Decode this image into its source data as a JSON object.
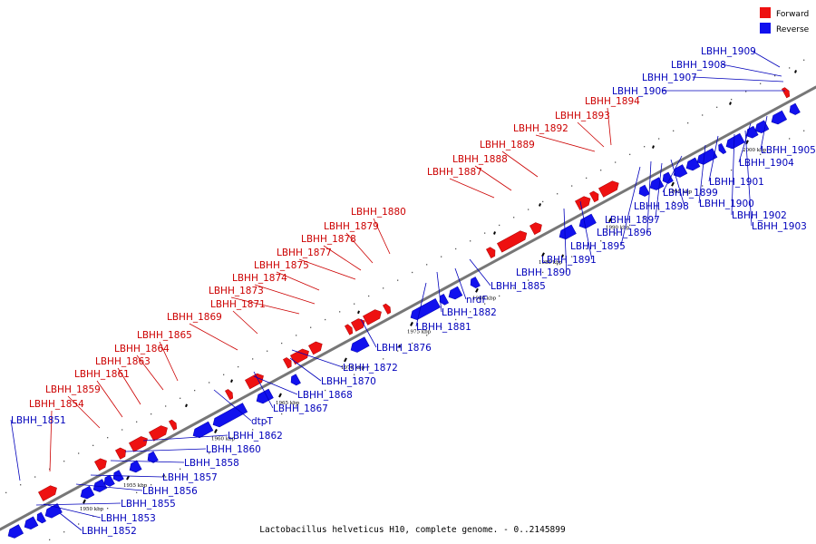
{
  "caption": "Lactobacillus helveticus H10, complete genome. - 0..2145899",
  "colors": {
    "forward": "#ee1111",
    "reverse": "#1111ee",
    "forward_text": "#cc0000",
    "reverse_text": "#0000bb",
    "backbone": "#777777"
  },
  "legend": [
    {
      "label": "Forward",
      "strand": "forward"
    },
    {
      "label": "Reverse",
      "strand": "reverse"
    }
  ],
  "scale_labels": [
    "1950 kbp",
    "1955 kbp",
    "1960 kbp",
    "1965 kbp",
    "1970 kbp",
    "1975 kbp",
    "1980 kbp",
    "1985 kbp",
    "1990 kbp",
    "1995 kbp",
    "2000 kbp"
  ],
  "forward_genes": [
    "LBHH_1854",
    "LBHH_1859",
    "LBHH_1861",
    "LBHH_1863",
    "LBHH_1864",
    "LBHH_1865",
    "LBHH_1869",
    "LBHH_1871",
    "LBHH_1873",
    "LBHH_1874",
    "LBHH_1875",
    "LBHH_1877",
    "LBHH_1878",
    "LBHH_1879",
    "LBHH_1880",
    "LBHH_1887",
    "LBHH_1888",
    "LBHH_1889",
    "LBHH_1892",
    "LBHH_1893",
    "LBHH_1894"
  ],
  "reverse_genes": [
    "LBHH_1851",
    "LBHH_1852",
    "LBHH_1853",
    "LBHH_1855",
    "LBHH_1856",
    "LBHH_1857",
    "LBHH_1858",
    "LBHH_1860",
    "LBHH_1862",
    "dtpT",
    "LBHH_1867",
    "LBHH_1868",
    "LBHH_1870",
    "LBHH_1872",
    "LBHH_1876",
    "LBHH_1881",
    "LBHH_1882",
    "nrdF",
    "LBHH_1885",
    "LBHH_1890",
    "LBHH_1891",
    "LBHH_1895",
    "LBHH_1896",
    "LBHH_1897",
    "LBHH_1898",
    "LBHH_1899",
    "LBHH_1900",
    "LBHH_1901",
    "LBHH_1902",
    "LBHH_1903",
    "LBHH_1904",
    "LBHH_1905",
    "LBHH_1906",
    "LBHH_1907",
    "LBHH_1908",
    "LBHH_1909"
  ]
}
